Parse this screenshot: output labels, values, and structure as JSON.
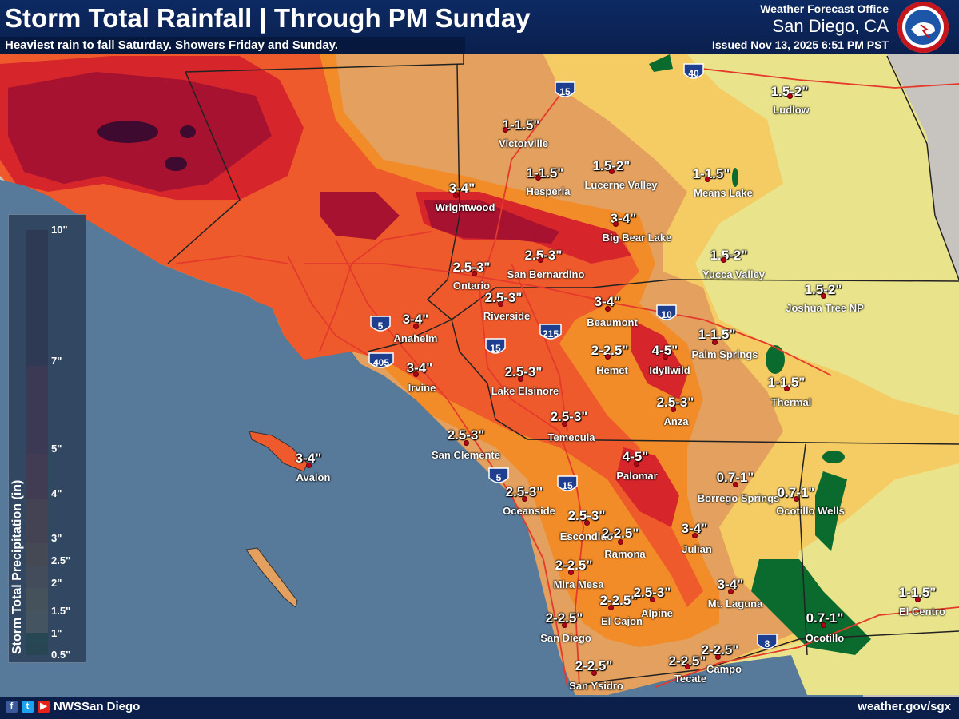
{
  "header": {
    "title": "Storm Total Rainfall | Through PM Sunday",
    "subtitle": "Heaviest rain to fall Saturday. Showers Friday and Sunday.",
    "office_line1": "Weather Forecast Office",
    "office_line2": "San Diego, CA",
    "issued": "Issued Nov 13, 2025 6:51 PM PST",
    "logo_icon": "nws-logo-icon"
  },
  "legend": {
    "title": "Storm Total Precipitation (in)",
    "stops": [
      {
        "label": "0.5\"",
        "value": 0.5,
        "color": "#0b6b2e"
      },
      {
        "label": "1\"",
        "value": 1,
        "color": "#e9e48b"
      },
      {
        "label": "1.5\"",
        "value": 1.5,
        "color": "#f5cb63"
      },
      {
        "label": "2\"",
        "value": 2,
        "color": "#e3a05e"
      },
      {
        "label": "2.5\"",
        "value": 2.5,
        "color": "#f28c28"
      },
      {
        "label": "3\"",
        "value": 3,
        "color": "#ef5a2c"
      },
      {
        "label": "4\"",
        "value": 4,
        "color": "#d7262b"
      },
      {
        "label": "5\"",
        "value": 5,
        "color": "#a6122f"
      },
      {
        "label": "7\"",
        "value": 7,
        "color": "#3f0a2f"
      },
      {
        "label": "10\"",
        "value": 10,
        "color": "#3f0a2f"
      }
    ]
  },
  "colors": {
    "ocean": "#57799a",
    "land_desert": "#c7c4bf",
    "g_05": "#0b6b2e",
    "g_1": "#e9e48b",
    "g_15": "#f5cb63",
    "g_2": "#e3a05e",
    "g_25": "#f28c28",
    "g_3": "#ef5a2c",
    "g_4": "#d7262b",
    "g_5": "#a6122f",
    "g_7": "#3f0a2f",
    "roads": "#e43a2c"
  },
  "highways": [
    "40",
    "15",
    "10",
    "215",
    "15",
    "5",
    "405",
    "5",
    "15",
    "8"
  ],
  "places": [
    {
      "amount": "1-1.5\"",
      "name": "Victorville"
    },
    {
      "amount": "1.5-2\"",
      "name": "Ludlow"
    },
    {
      "amount": "1-1.5\"",
      "name": "Hesperia"
    },
    {
      "amount": "1.5-2\"",
      "name": "Lucerne Valley"
    },
    {
      "amount": "1-1.5\"",
      "name": "Means Lake"
    },
    {
      "amount": "3-4\"",
      "name": "Wrightwood"
    },
    {
      "amount": "3-4\"",
      "name": "Big Bear Lake"
    },
    {
      "amount": "1.5-2\"",
      "name": "Yucca Valley"
    },
    {
      "amount": "2.5-3\"",
      "name": "Ontario"
    },
    {
      "amount": "2.5-3\"",
      "name": "San Bernardino"
    },
    {
      "amount": "1.5-2\"",
      "name": "Joshua Tree NP"
    },
    {
      "amount": "2.5-3\"",
      "name": "Riverside"
    },
    {
      "amount": "3-4\"",
      "name": "Beaumont"
    },
    {
      "amount": "3-4\"",
      "name": "Anaheim"
    },
    {
      "amount": "1-1.5\"",
      "name": "Palm Springs"
    },
    {
      "amount": "2-2.5\"",
      "name": "Hemet"
    },
    {
      "amount": "4-5\"",
      "name": "Idyllwild"
    },
    {
      "amount": "3-4\"",
      "name": "Irvine"
    },
    {
      "amount": "2.5-3\"",
      "name": "Lake Elsinore"
    },
    {
      "amount": "1-1.5\"",
      "name": "Thermal"
    },
    {
      "amount": "2.5-3\"",
      "name": "Anza"
    },
    {
      "amount": "2.5-3\"",
      "name": "Temecula"
    },
    {
      "amount": "2.5-3\"",
      "name": "San Clemente"
    },
    {
      "amount": "3-4\"",
      "name": "Avalon"
    },
    {
      "amount": "4-5\"",
      "name": "Palomar"
    },
    {
      "amount": "0.7-1\"",
      "name": "Borrego Springs"
    },
    {
      "amount": "2.5-3\"",
      "name": "Oceanside"
    },
    {
      "amount": "0.7-1\"",
      "name": "Ocotillo Wells"
    },
    {
      "amount": "2.5-3\"",
      "name": "Escondido"
    },
    {
      "amount": "2-2.5\"",
      "name": "Ramona"
    },
    {
      "amount": "3-4\"",
      "name": "Julian"
    },
    {
      "amount": "2-2.5\"",
      "name": "Mira Mesa"
    },
    {
      "amount": "3-4\"",
      "name": "Mt. Laguna"
    },
    {
      "amount": "2-2.5\"",
      "name": "El Cajon"
    },
    {
      "amount": "2.5-3\"",
      "name": "Alpine"
    },
    {
      "amount": "1-1.5\"",
      "name": "El Centro"
    },
    {
      "amount": "2-2.5\"",
      "name": "San Diego"
    },
    {
      "amount": "0.7-1\"",
      "name": "Ocotillo"
    },
    {
      "amount": "2-2.5\"",
      "name": "Campo"
    },
    {
      "amount": "2-2.5\"",
      "name": "Tecate"
    },
    {
      "amount": "2-2.5\"",
      "name": "San Ysidro"
    }
  ],
  "footer": {
    "handle": "NWSSan Diego",
    "website": "weather.gov/sgx",
    "icons": [
      "facebook-icon",
      "twitter-icon",
      "youtube-icon"
    ]
  }
}
